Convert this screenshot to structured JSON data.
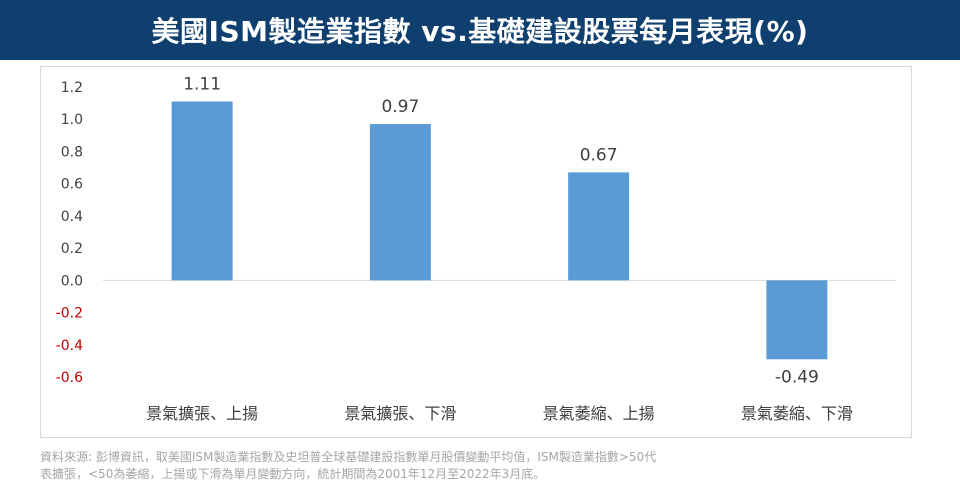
{
  "header": {
    "title": "美國ISM製造業指數 vs.基礎建設股票每月表現(%)"
  },
  "colors": {
    "banner": "#0e3f6f",
    "bar": "#5b9bd5",
    "negative_tick": "#c00000",
    "source_text": "#a6a6a6"
  },
  "chart_data": {
    "type": "bar",
    "title": "",
    "xlabel": "",
    "ylabel": "",
    "categories": [
      "景氣擴張、上揚",
      "景氣擴張、下滑",
      "景氣萎縮、上揚",
      "景氣萎縮、下滑"
    ],
    "values": [
      1.11,
      0.97,
      0.67,
      -0.49
    ],
    "data_labels": [
      "1.11",
      "0.97",
      "0.67",
      "-0.49"
    ],
    "ylim": [
      -0.6,
      1.2
    ],
    "yticks": [
      "1.2",
      "1.0",
      "0.8",
      "0.6",
      "0.4",
      "0.2",
      "0.0",
      "-0.2",
      "-0.4",
      "-0.6"
    ],
    "ytick_values": [
      1.2,
      1.0,
      0.8,
      0.6,
      0.4,
      0.2,
      0.0,
      -0.2,
      -0.4,
      -0.6
    ],
    "grid": false,
    "legend": "none"
  },
  "footer": {
    "source_line1": "資料來源: 彭博資訊，取美國ISM製造業指數及史坦普全球基礎建設指數單月股價變動平均值，ISM製造業指數>50代",
    "source_line2": "表擴張，<50為萎縮，上揚或下滑為單月變動方向，統計期間為2001年12月至2022年3月底。"
  }
}
